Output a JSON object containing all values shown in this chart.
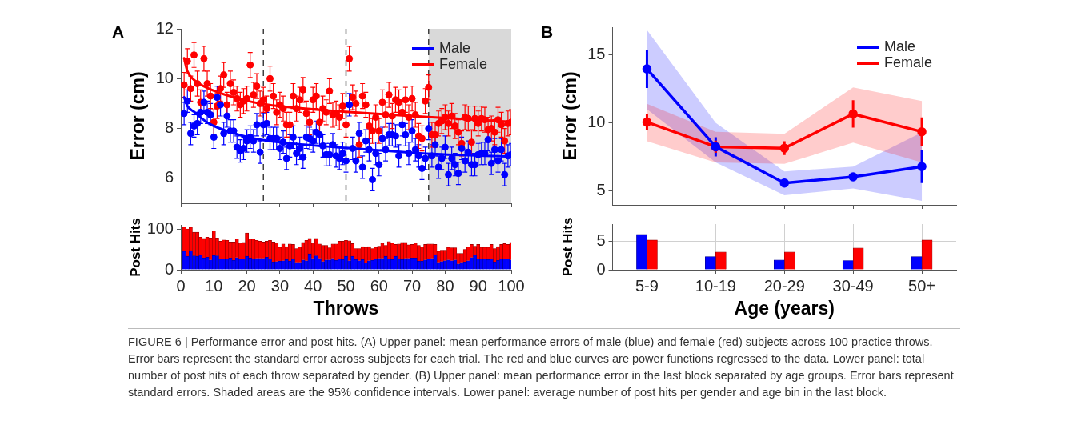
{
  "chart_data": [
    {
      "type": "scatter",
      "title": "A",
      "ylabel": "Error (cm)",
      "xlim": [
        0,
        100
      ],
      "xticks": [
        0,
        10,
        20,
        30,
        40,
        50,
        60,
        70,
        80,
        90,
        100
      ],
      "ylim": [
        5,
        12
      ],
      "yticks": [
        6,
        8,
        10,
        12
      ],
      "tick_labels": "y",
      "marker": "circle",
      "legend": "top right",
      "ref_lines": [
        {
          "axis": "x",
          "value": 25,
          "color": "#404040",
          "line_style": "dashed"
        },
        {
          "axis": "x",
          "value": 50,
          "color": "#404040",
          "line_style": "dashed"
        },
        {
          "axis": "x",
          "value": 75,
          "color": "#404040",
          "line_style": "dashed"
        }
      ],
      "bands": [
        {
          "axis": "x",
          "from": 75,
          "to": 100,
          "color": "#d9d9d9"
        }
      ],
      "x": [
        1,
        2,
        3,
        4,
        5,
        6,
        7,
        8,
        9,
        10,
        11,
        12,
        13,
        14,
        15,
        16,
        17,
        18,
        19,
        20,
        21,
        22,
        23,
        24,
        25,
        26,
        27,
        28,
        29,
        30,
        31,
        32,
        33,
        34,
        35,
        36,
        37,
        38,
        39,
        40,
        41,
        42,
        43,
        44,
        45,
        46,
        47,
        48,
        49,
        50,
        51,
        52,
        53,
        54,
        55,
        56,
        57,
        58,
        59,
        60,
        61,
        62,
        63,
        64,
        65,
        66,
        67,
        68,
        69,
        70,
        71,
        72,
        73,
        74,
        75,
        76,
        77,
        78,
        79,
        80,
        81,
        82,
        83,
        84,
        85,
        86,
        87,
        88,
        89,
        90,
        91,
        92,
        93,
        94,
        95,
        96,
        97,
        98,
        99,
        100
      ],
      "series": [
        {
          "name": "Male",
          "color": "#0000ff",
          "values": [
            8.6,
            9.1,
            7.8,
            8.1,
            8.2,
            8.65,
            9.05,
            8.65,
            8.55,
            7.65,
            9.25,
            8.95,
            7.8,
            8.5,
            7.9,
            7.9,
            7.25,
            7.1,
            7.2,
            7.5,
            7.65,
            7.5,
            8.15,
            7.05,
            8.15,
            8.2,
            7.6,
            7.6,
            7.6,
            7.2,
            7.45,
            6.8,
            7.3,
            7.65,
            7.0,
            7.2,
            6.85,
            7.65,
            7.6,
            7.5,
            7.85,
            7.75,
            7.3,
            6.95,
            6.95,
            7.35,
            6.9,
            6.8,
            7.0,
            6.7,
            8.95,
            7.2,
            6.7,
            7.8,
            6.45,
            7.5,
            7.15,
            5.95,
            7.0,
            6.55,
            7.6,
            7.15,
            7.75,
            7.75,
            7.7,
            6.9,
            8.15,
            7.75,
            7.0,
            7.9,
            7.15,
            6.9,
            6.4,
            6.8,
            8.0,
            6.9,
            7.35,
            6.45,
            6.8,
            7.25,
            6.15,
            6.8,
            6.55,
            6.2,
            7.2,
            6.7,
            7.05,
            6.55,
            6.55,
            6.95,
            7.0,
            7.0,
            7.55,
            6.6,
            7.15,
            6.7,
            7.15,
            6.15,
            6.9,
            6.95
          ],
          "errors": [
            0.45,
            0.45,
            0.45,
            0.45,
            0.45,
            0.45,
            0.45,
            0.45,
            0.45,
            0.45,
            0.45,
            0.45,
            0.45,
            0.45,
            0.45,
            0.45,
            0.45,
            0.45,
            0.45,
            0.45,
            0.45,
            0.45,
            0.45,
            0.45,
            0.45,
            0.45,
            0.45,
            0.45,
            0.45,
            0.45,
            0.45,
            0.45,
            0.45,
            0.45,
            0.45,
            0.45,
            0.45,
            0.45,
            0.45,
            0.45,
            0.45,
            0.45,
            0.45,
            0.45,
            0.45,
            0.45,
            0.45,
            0.45,
            0.45,
            0.45,
            0.45,
            0.45,
            0.45,
            0.45,
            0.45,
            0.45,
            0.45,
            0.45,
            0.45,
            0.45,
            0.45,
            0.45,
            0.45,
            0.45,
            0.45,
            0.45,
            0.45,
            0.45,
            0.45,
            0.45,
            0.45,
            0.45,
            0.45,
            0.45,
            0.45,
            0.45,
            0.45,
            0.45,
            0.45,
            0.45,
            0.45,
            0.45,
            0.45,
            0.45,
            0.45,
            0.45,
            0.45,
            0.45,
            0.45,
            0.45,
            0.45,
            0.45,
            0.45,
            0.45,
            0.45,
            0.45,
            0.45,
            0.45,
            0.45,
            0.45
          ]
        },
        {
          "name": "Female",
          "color": "#ff0000",
          "values": [
            9.75,
            10.7,
            9.6,
            10.95,
            9.8,
            9.05,
            10.8,
            9.8,
            9.3,
            8.25,
            8.9,
            9.6,
            10.15,
            8.95,
            9.8,
            9.45,
            9.2,
            8.95,
            9.1,
            9.2,
            10.55,
            9.35,
            9.7,
            9.0,
            9.15,
            8.8,
            10.0,
            9.3,
            8.65,
            8.95,
            8.8,
            8.15,
            8.15,
            9.3,
            8.8,
            9.15,
            9.55,
            8.6,
            8.25,
            9.15,
            9.3,
            8.25,
            8.8,
            8.65,
            9.5,
            8.55,
            8.6,
            8.45,
            8.9,
            8.15,
            10.8,
            9.25,
            9.0,
            7.35,
            9.3,
            8.95,
            8.1,
            7.9,
            8.45,
            7.9,
            9.05,
            8.55,
            9.35,
            8.5,
            9.15,
            9.05,
            8.65,
            9.15,
            8.45,
            9.2,
            8.55,
            7.7,
            7.6,
            9.1,
            9.65,
            7.75,
            7.75,
            8.2,
            8.3,
            8.45,
            8.2,
            8.5,
            8.1,
            7.85,
            7.4,
            8.45,
            8.4,
            7.45,
            8.4,
            8.2,
            8.4,
            8.35,
            7.95,
            8.0,
            7.85,
            8.35,
            8.15,
            7.5,
            8.2,
            8.25
          ],
          "errors": [
            0.5,
            0.5,
            0.5,
            0.5,
            0.5,
            0.5,
            0.5,
            0.5,
            0.5,
            0.5,
            0.5,
            0.5,
            0.5,
            0.5,
            0.5,
            0.5,
            0.5,
            0.5,
            0.5,
            0.5,
            0.5,
            0.5,
            0.5,
            0.5,
            0.5,
            0.5,
            0.5,
            0.5,
            0.5,
            0.5,
            0.5,
            0.5,
            0.5,
            0.5,
            0.5,
            0.5,
            0.5,
            0.5,
            0.5,
            0.5,
            0.5,
            0.5,
            0.5,
            0.5,
            0.5,
            0.5,
            0.5,
            0.5,
            0.5,
            0.5,
            0.5,
            0.5,
            0.5,
            0.5,
            0.5,
            0.5,
            0.5,
            0.5,
            0.5,
            0.5,
            0.5,
            0.5,
            0.5,
            0.5,
            0.5,
            0.5,
            0.5,
            0.5,
            0.5,
            0.5,
            0.5,
            0.5,
            0.5,
            0.5,
            0.5,
            0.5,
            0.5,
            0.5,
            0.5,
            0.5,
            0.5,
            0.5,
            0.5,
            0.5,
            0.5,
            0.5,
            0.5,
            0.5,
            0.5,
            0.5,
            0.5,
            0.5,
            0.5,
            0.5,
            0.5,
            0.5,
            0.5,
            0.5,
            0.5,
            0.5
          ]
        },
        {
          "type": "line",
          "marker": "none",
          "color": "#0000ff",
          "x": [
            1,
            2,
            4,
            8,
            16,
            24,
            35,
            50,
            76,
            100
          ],
          "values": [
            9.25,
            8.9,
            8.67,
            8.24,
            7.81,
            7.55,
            7.38,
            7.22,
            6.98,
            6.87
          ]
        },
        {
          "type": "line",
          "marker": "none",
          "color": "#ff0000",
          "x": [
            1,
            2,
            4,
            8,
            16,
            24,
            35,
            50,
            76,
            100
          ],
          "values": [
            10.82,
            10.3,
            9.95,
            9.63,
            9.25,
            9.0,
            8.83,
            8.67,
            8.45,
            8.27
          ]
        }
      ],
      "annotations": [
        "FIGURE 6 | Performance error and post hits. (A) Upper panel: mean performance errors of male (blue) and female (red) subjects across 100 practice throws. Error bars represent the standard error across subjects for each trial. The red and blue curves are power functions regressed to the data. Lower panel: total number of post hits of each throw separated by gender. (B) Upper panel: mean performance error in the last block separated by age groups. Error bars represent standard errors. Shaded areas are the 95% confidence intervals. Lower panel: average number of post hits per gender and age bin in the last block."
      ]
    },
    {
      "type": "bar",
      "stacked": true,
      "xlabel": "Throws",
      "ylabel": "Post Hits",
      "xlim": [
        0,
        100
      ],
      "xticks": [
        0,
        10,
        20,
        30,
        40,
        50,
        60,
        70,
        80,
        90,
        100
      ],
      "ylim": [
        0,
        110
      ],
      "yticks": [
        0,
        100
      ],
      "x": [
        1,
        2,
        3,
        4,
        5,
        6,
        7,
        8,
        9,
        10,
        11,
        12,
        13,
        14,
        15,
        16,
        17,
        18,
        19,
        20,
        21,
        22,
        23,
        24,
        25,
        26,
        27,
        28,
        29,
        30,
        31,
        32,
        33,
        34,
        35,
        36,
        37,
        38,
        39,
        40,
        41,
        42,
        43,
        44,
        45,
        46,
        47,
        48,
        49,
        50,
        51,
        52,
        53,
        54,
        55,
        56,
        57,
        58,
        59,
        60,
        61,
        62,
        63,
        64,
        65,
        66,
        67,
        68,
        69,
        70,
        71,
        72,
        73,
        74,
        75,
        76,
        77,
        78,
        79,
        80,
        81,
        82,
        83,
        84,
        85,
        86,
        87,
        88,
        89,
        90,
        91,
        92,
        93,
        94,
        95,
        96,
        97,
        98,
        99,
        100
      ],
      "series": [
        {
          "color": "#0000ff",
          "values": [
            45,
            33,
            47,
            34,
            33,
            36,
            29,
            31,
            24,
            35,
            34,
            26,
            26,
            26,
            29,
            23,
            30,
            26,
            27,
            33,
            29,
            26,
            28,
            28,
            28,
            31,
            26,
            19,
            20,
            21,
            22,
            25,
            21,
            27,
            18,
            18,
            24,
            22,
            39,
            28,
            34,
            28,
            20,
            24,
            24,
            28,
            23,
            27,
            25,
            33,
            22,
            33,
            25,
            22,
            25,
            17,
            22,
            23,
            26,
            28,
            28,
            33,
            26,
            25,
            33,
            26,
            25,
            28,
            28,
            29,
            29,
            21,
            21,
            24,
            27,
            28,
            37,
            18,
            20,
            22,
            24,
            22,
            24,
            14,
            18,
            19,
            22,
            30,
            36,
            26,
            26,
            26,
            25,
            27,
            19,
            23,
            26,
            26,
            26,
            24
          ]
        },
        {
          "color": "#ff0000",
          "values": [
            60,
            67,
            57,
            58,
            59,
            44,
            48,
            49,
            54,
            60,
            44,
            44,
            47,
            46,
            39,
            45,
            45,
            39,
            40,
            57,
            47,
            49,
            44,
            42,
            40,
            39,
            46,
            49,
            45,
            34,
            41,
            32,
            42,
            35,
            34,
            38,
            43,
            50,
            38,
            37,
            43,
            35,
            40,
            36,
            30,
            35,
            40,
            43,
            45,
            39,
            49,
            31,
            27,
            30,
            32,
            38,
            35,
            29,
            29,
            30,
            37,
            27,
            43,
            41,
            29,
            37,
            42,
            39,
            33,
            33,
            36,
            39,
            35,
            38,
            36,
            35,
            25,
            27,
            28,
            26,
            31,
            32,
            30,
            26,
            22,
            31,
            34,
            32,
            22,
            36,
            29,
            29,
            30,
            35,
            33,
            34,
            36,
            38,
            36,
            43
          ]
        }
      ]
    },
    {
      "type": "line",
      "title": "B",
      "ylabel": "Error (cm)",
      "categories": [
        null,
        null,
        null,
        null,
        null
      ],
      "tick_labels": "y",
      "ylim": [
        4,
        17
      ],
      "yticks": [
        5,
        10,
        15
      ],
      "marker": "circle",
      "legend": "top right",
      "series": [
        {
          "name": "Male",
          "color": "#0000ff",
          "values": [
            13.95,
            8.25,
            5.6,
            6.05,
            6.8
          ],
          "errors": [
            1.4,
            0.7,
            0.3,
            0.25,
            1.2
          ],
          "lower": [
            11.0,
            7.1,
            4.7,
            5.2,
            4.3
          ],
          "upper": [
            16.8,
            10.0,
            6.45,
            6.8,
            9.3
          ]
        },
        {
          "name": "Female",
          "color": "#ff0000",
          "values": [
            10.05,
            8.25,
            8.15,
            10.65,
            9.35
          ],
          "errors": [
            0.6,
            0.45,
            0.5,
            1.0,
            1.05
          ],
          "lower": [
            8.65,
            7.1,
            7.0,
            8.55,
            7.1
          ],
          "upper": [
            11.4,
            9.35,
            9.2,
            12.6,
            11.6
          ]
        }
      ]
    },
    {
      "type": "bar",
      "xlabel": "Age (years)",
      "ylabel": "Post Hits",
      "categories": [
        "5-9",
        "10-19",
        "20-29",
        "30-49",
        "50+"
      ],
      "ylim": [
        0,
        8
      ],
      "yticks": [
        0,
        5
      ],
      "grid": true,
      "series": [
        {
          "color": "#0000ff",
          "values": [
            6.2,
            2.3,
            1.7,
            1.6,
            2.3
          ]
        },
        {
          "color": "#ff0000",
          "values": [
            5.2,
            3.1,
            3.1,
            3.8,
            5.2
          ]
        }
      ]
    }
  ]
}
